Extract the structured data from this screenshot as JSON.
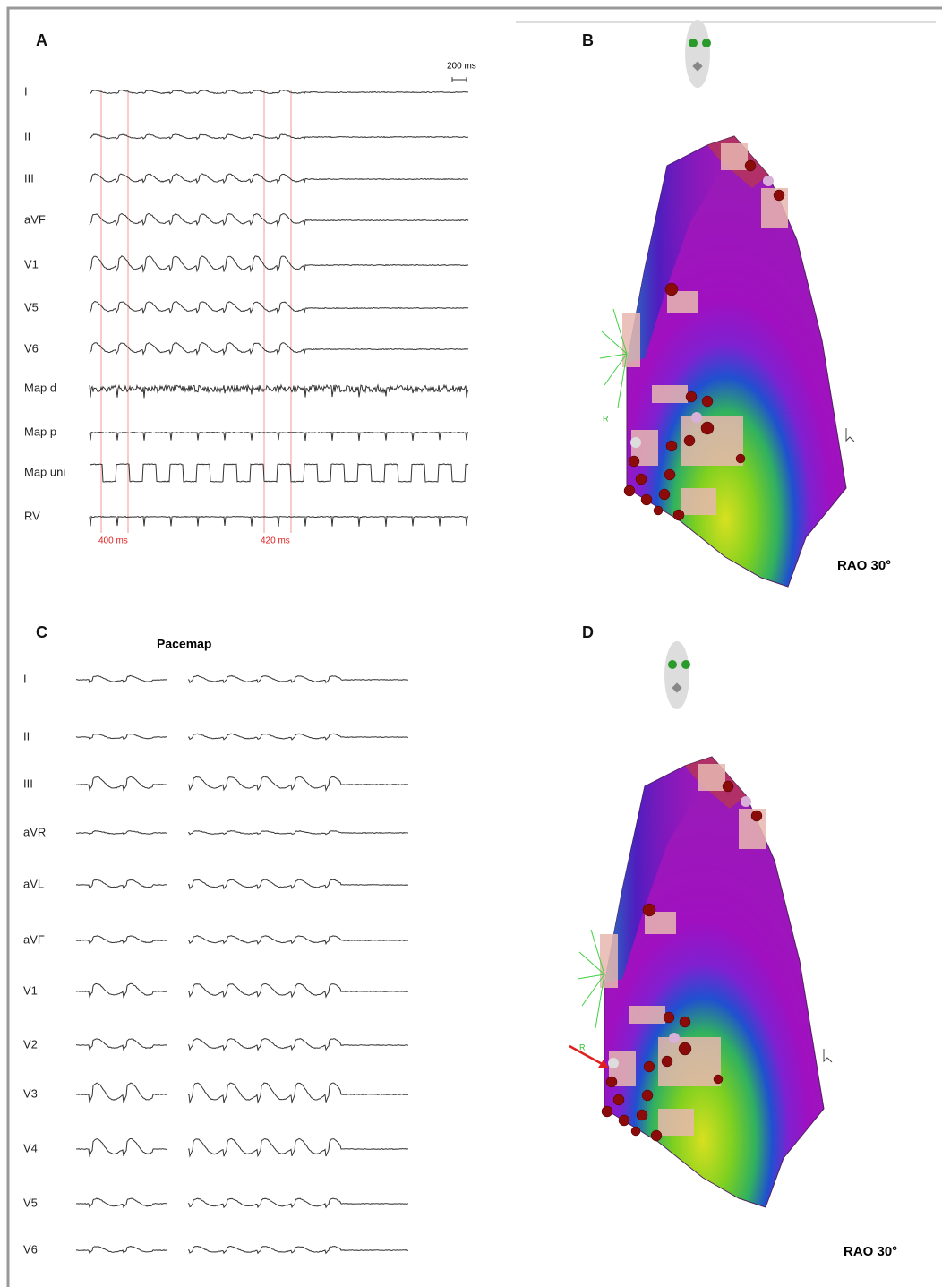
{
  "panels": [
    {
      "label": "A",
      "leads": [
        "I",
        "II",
        "III",
        "aVF",
        "V1",
        "V5",
        "V6",
        "Map d",
        "Map p",
        "Map uni",
        "RV"
      ],
      "scale": "200 ms",
      "intervals": [
        "400 ms",
        "420 ms"
      ]
    },
    {
      "label": "B",
      "view": "RAO 30°",
      "marker": "R"
    },
    {
      "label": "C",
      "title": "Pacemap",
      "leads": [
        "I",
        "II",
        "III",
        "aVR",
        "aVL",
        "aVF",
        "V1",
        "V2",
        "V3",
        "V4",
        "V5",
        "V6"
      ]
    },
    {
      "label": "D",
      "view": "RAO 30°",
      "marker": "R"
    }
  ]
}
